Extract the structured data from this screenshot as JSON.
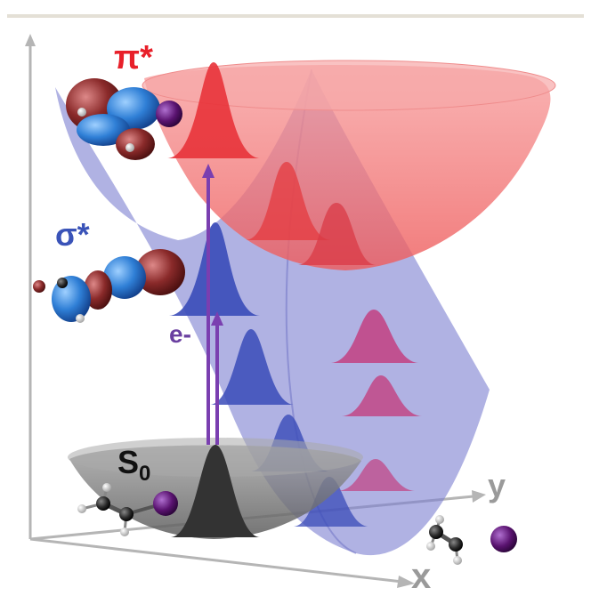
{
  "labels": {
    "pi_star": "π*",
    "sigma_star": "σ*",
    "electron": "e-",
    "ground_state": "S",
    "ground_state_sub": "0",
    "axis_x": "x",
    "axis_y": "y"
  },
  "colors": {
    "pi_surface": "#f26d6d",
    "sigma_surface": "#7b7fd0",
    "ground_surface": "#6e6e6e",
    "pi_text": "#e8202a",
    "sigma_text": "#3a53b8",
    "electron_text": "#6a3fa0",
    "arrow": "#7a3fb0",
    "axis": "#b0b0b0",
    "orbital_positive": "#8a2a2a",
    "orbital_negative": "#2f7fd6",
    "iodine_atom": "#5a1370",
    "carbon_atom": "#2a2a2a",
    "hydrogen_atom": "#e8e8e8"
  }
}
